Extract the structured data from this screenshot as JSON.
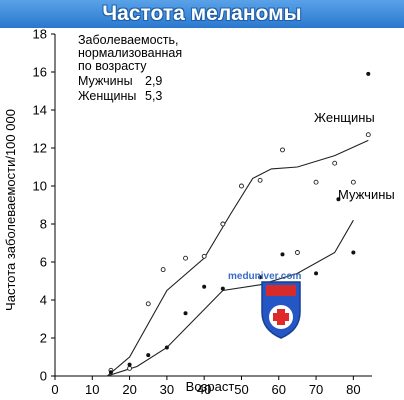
{
  "header": {
    "title": "Частота меланомы"
  },
  "annotation": {
    "lines": [
      "Заболеваемость,",
      "нормализованная",
      "по возрасту"
    ],
    "men": {
      "label": "Мужчины",
      "value": "2,9"
    },
    "women": {
      "label": "Женщины",
      "value": "5,3"
    }
  },
  "watermark": {
    "text": "meduniver.com",
    "icon": "medical-cross-shield-icon"
  },
  "chart_data": {
    "type": "scatter",
    "title": "",
    "xlabel": "Возраст",
    "ylabel": "Частота заболеваемости/100 000",
    "xlim": [
      0,
      85
    ],
    "ylim": [
      0,
      18
    ],
    "xticks": [
      0,
      10,
      20,
      30,
      40,
      50,
      60,
      70,
      80
    ],
    "yticks": [
      0,
      2,
      4,
      6,
      8,
      10,
      12,
      14,
      16,
      18
    ],
    "grid": false,
    "series": [
      {
        "name": "Женщины",
        "marker": "open-circle",
        "points": [
          {
            "x": 15,
            "y": 0.3
          },
          {
            "x": 20,
            "y": 0.4
          },
          {
            "x": 25,
            "y": 3.8
          },
          {
            "x": 29,
            "y": 5.6
          },
          {
            "x": 35,
            "y": 6.2
          },
          {
            "x": 40,
            "y": 6.3
          },
          {
            "x": 45,
            "y": 8.0
          },
          {
            "x": 50,
            "y": 10.0
          },
          {
            "x": 55,
            "y": 10.3
          },
          {
            "x": 61,
            "y": 11.9
          },
          {
            "x": 65,
            "y": 6.5
          },
          {
            "x": 70,
            "y": 10.2
          },
          {
            "x": 75,
            "y": 11.2
          },
          {
            "x": 80,
            "y": 10.2
          },
          {
            "x": 84,
            "y": 12.7
          }
        ],
        "trend": [
          {
            "x": 14,
            "y": 0
          },
          {
            "x": 20,
            "y": 1
          },
          {
            "x": 30,
            "y": 4.5
          },
          {
            "x": 40,
            "y": 6.2
          },
          {
            "x": 47,
            "y": 8.5
          },
          {
            "x": 53,
            "y": 10.4
          },
          {
            "x": 58,
            "y": 10.9
          },
          {
            "x": 65,
            "y": 11.0
          },
          {
            "x": 75,
            "y": 11.6
          },
          {
            "x": 84,
            "y": 12.4
          }
        ]
      },
      {
        "name": "Мужчины",
        "marker": "filled-dot",
        "points": [
          {
            "x": 15,
            "y": 0.2
          },
          {
            "x": 20,
            "y": 0.6
          },
          {
            "x": 25,
            "y": 1.1
          },
          {
            "x": 30,
            "y": 1.5
          },
          {
            "x": 35,
            "y": 3.3
          },
          {
            "x": 40,
            "y": 4.7
          },
          {
            "x": 45,
            "y": 4.6
          },
          {
            "x": 55,
            "y": 5.2
          },
          {
            "x": 61,
            "y": 6.4
          },
          {
            "x": 70,
            "y": 5.4
          },
          {
            "x": 76,
            "y": 9.3
          },
          {
            "x": 80,
            "y": 6.5
          },
          {
            "x": 84,
            "y": 15.9
          }
        ],
        "trend": [
          {
            "x": 14,
            "y": 0
          },
          {
            "x": 22,
            "y": 0.5
          },
          {
            "x": 30,
            "y": 1.5
          },
          {
            "x": 40,
            "y": 3.5
          },
          {
            "x": 45,
            "y": 4.5
          },
          {
            "x": 55,
            "y": 4.8
          },
          {
            "x": 65,
            "y": 5.4
          },
          {
            "x": 75,
            "y": 6.5
          },
          {
            "x": 80,
            "y": 8.2
          }
        ]
      }
    ]
  }
}
